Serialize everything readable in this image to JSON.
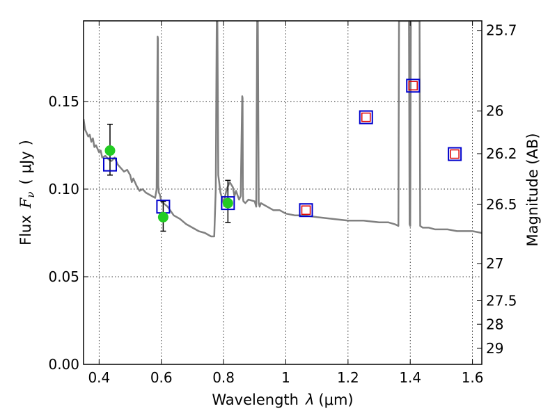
{
  "chart_data": {
    "type": "scatter",
    "title": "",
    "xlabel": {
      "text": "Wavelength",
      "symbol": "λ",
      "unit": "(μm)"
    },
    "ylabel": {
      "text": "Flux",
      "symbol": "F",
      "subscript": "ν",
      "unit_open": "(",
      "unit": "μJy",
      "unit_close": ")"
    },
    "y2label": "Magnitude (AB)",
    "xlim": [
      0.35,
      1.63
    ],
    "ylim": [
      0.0,
      0.196
    ],
    "grid": true,
    "x_ticks": [
      {
        "v": 0.4,
        "label": "0.4"
      },
      {
        "v": 0.6,
        "label": "0.6"
      },
      {
        "v": 0.8,
        "label": "0.8"
      },
      {
        "v": 1.0,
        "label": "1"
      },
      {
        "v": 1.2,
        "label": "1.2"
      },
      {
        "v": 1.4,
        "label": "1.4"
      },
      {
        "v": 1.6,
        "label": "1.6"
      }
    ],
    "y_ticks": [
      {
        "v": 0.0,
        "label": "0.00"
      },
      {
        "v": 0.05,
        "label": "0.05"
      },
      {
        "v": 0.1,
        "label": "0.10"
      },
      {
        "v": 0.15,
        "label": "0.15"
      }
    ],
    "mag_ticks": [
      {
        "mag": 25.7,
        "label": "25.7"
      },
      {
        "mag": 26,
        "label": "26"
      },
      {
        "mag": 26.2,
        "label": "26.2"
      },
      {
        "mag": 26.5,
        "label": "26.5"
      },
      {
        "mag": 27,
        "label": "27"
      },
      {
        "mag": 27.5,
        "label": "27.5"
      },
      {
        "mag": 28,
        "label": "28"
      },
      {
        "mag": 29,
        "label": "29"
      }
    ],
    "colors": {
      "model": "#808080",
      "observed": "#22cc22",
      "model_box": "#0000cc",
      "inner_box": "#dd0000",
      "errorbar": "#000000"
    },
    "model_sed": {
      "x": [
        0.35,
        0.355,
        0.36,
        0.365,
        0.37,
        0.375,
        0.38,
        0.385,
        0.39,
        0.395,
        0.4,
        0.405,
        0.41,
        0.42,
        0.43,
        0.44,
        0.45,
        0.46,
        0.47,
        0.48,
        0.49,
        0.5,
        0.505,
        0.51,
        0.52,
        0.53,
        0.54,
        0.55,
        0.56,
        0.57,
        0.58,
        0.585,
        0.588,
        0.589,
        0.59,
        0.592,
        0.595,
        0.6,
        0.62,
        0.64,
        0.66,
        0.68,
        0.7,
        0.72,
        0.74,
        0.76,
        0.77,
        0.775,
        0.778,
        0.78,
        0.783,
        0.786,
        0.79,
        0.8,
        0.81,
        0.82,
        0.83,
        0.835,
        0.84,
        0.85,
        0.855,
        0.86,
        0.861,
        0.862,
        0.863,
        0.864,
        0.87,
        0.88,
        0.9,
        0.905,
        0.908,
        0.91,
        0.913,
        0.916,
        0.92,
        0.94,
        0.96,
        0.98,
        1.0,
        1.03,
        1.06,
        1.1,
        1.15,
        1.2,
        1.25,
        1.3,
        1.33,
        1.35,
        1.362,
        1.364,
        1.37,
        1.372,
        1.374,
        1.38,
        1.39,
        1.393,
        1.396,
        1.398,
        1.4,
        1.402,
        1.404,
        1.41,
        1.42,
        1.428,
        1.43,
        1.432,
        1.44,
        1.46,
        1.48,
        1.5,
        1.52,
        1.55,
        1.58,
        1.6,
        1.63
      ],
      "y": [
        0.14,
        0.134,
        0.132,
        0.13,
        0.131,
        0.127,
        0.129,
        0.124,
        0.125,
        0.123,
        0.121,
        0.122,
        0.118,
        0.119,
        0.117,
        0.116,
        0.118,
        0.114,
        0.112,
        0.11,
        0.111,
        0.108,
        0.104,
        0.106,
        0.102,
        0.099,
        0.1,
        0.098,
        0.097,
        0.096,
        0.095,
        0.1,
        0.187,
        0.186,
        0.102,
        0.098,
        0.097,
        0.093,
        0.09,
        0.085,
        0.083,
        0.08,
        0.078,
        0.076,
        0.075,
        0.073,
        0.073,
        0.1,
        0.196,
        0.196,
        0.108,
        0.104,
        0.098,
        0.092,
        0.1,
        0.104,
        0.101,
        0.096,
        0.099,
        0.094,
        0.096,
        0.153,
        0.152,
        0.1,
        0.094,
        0.093,
        0.092,
        0.094,
        0.093,
        0.09,
        0.196,
        0.196,
        0.092,
        0.09,
        0.092,
        0.09,
        0.088,
        0.088,
        0.086,
        0.085,
        0.085,
        0.084,
        0.083,
        0.082,
        0.082,
        0.081,
        0.081,
        0.08,
        0.079,
        0.196,
        0.196,
        0.196,
        0.196,
        0.196,
        0.196,
        0.196,
        0.196,
        0.08,
        0.079,
        0.196,
        0.196,
        0.196,
        0.196,
        0.196,
        0.196,
        0.079,
        0.078,
        0.078,
        0.077,
        0.077,
        0.077,
        0.076,
        0.076,
        0.076,
        0.075
      ]
    },
    "observed": [
      {
        "x": 0.435,
        "y": 0.122,
        "yerr_low": 0.108,
        "yerr_high": 0.137
      },
      {
        "x": 0.606,
        "y": 0.084,
        "yerr_low": 0.076,
        "yerr_high": 0.093
      },
      {
        "x": 0.814,
        "y": 0.092,
        "yerr_low": 0.081,
        "yerr_high": 0.105
      }
    ],
    "model_photometry": [
      {
        "x": 0.435,
        "y": 0.114,
        "inner": false
      },
      {
        "x": 0.606,
        "y": 0.09,
        "inner": false
      },
      {
        "x": 0.814,
        "y": 0.092,
        "inner": false
      },
      {
        "x": 1.065,
        "y": 0.088,
        "inner": true
      },
      {
        "x": 1.258,
        "y": 0.141,
        "inner": true
      },
      {
        "x": 1.409,
        "y": 0.159,
        "inner": true
      },
      {
        "x": 1.543,
        "y": 0.12,
        "inner": true
      }
    ]
  }
}
